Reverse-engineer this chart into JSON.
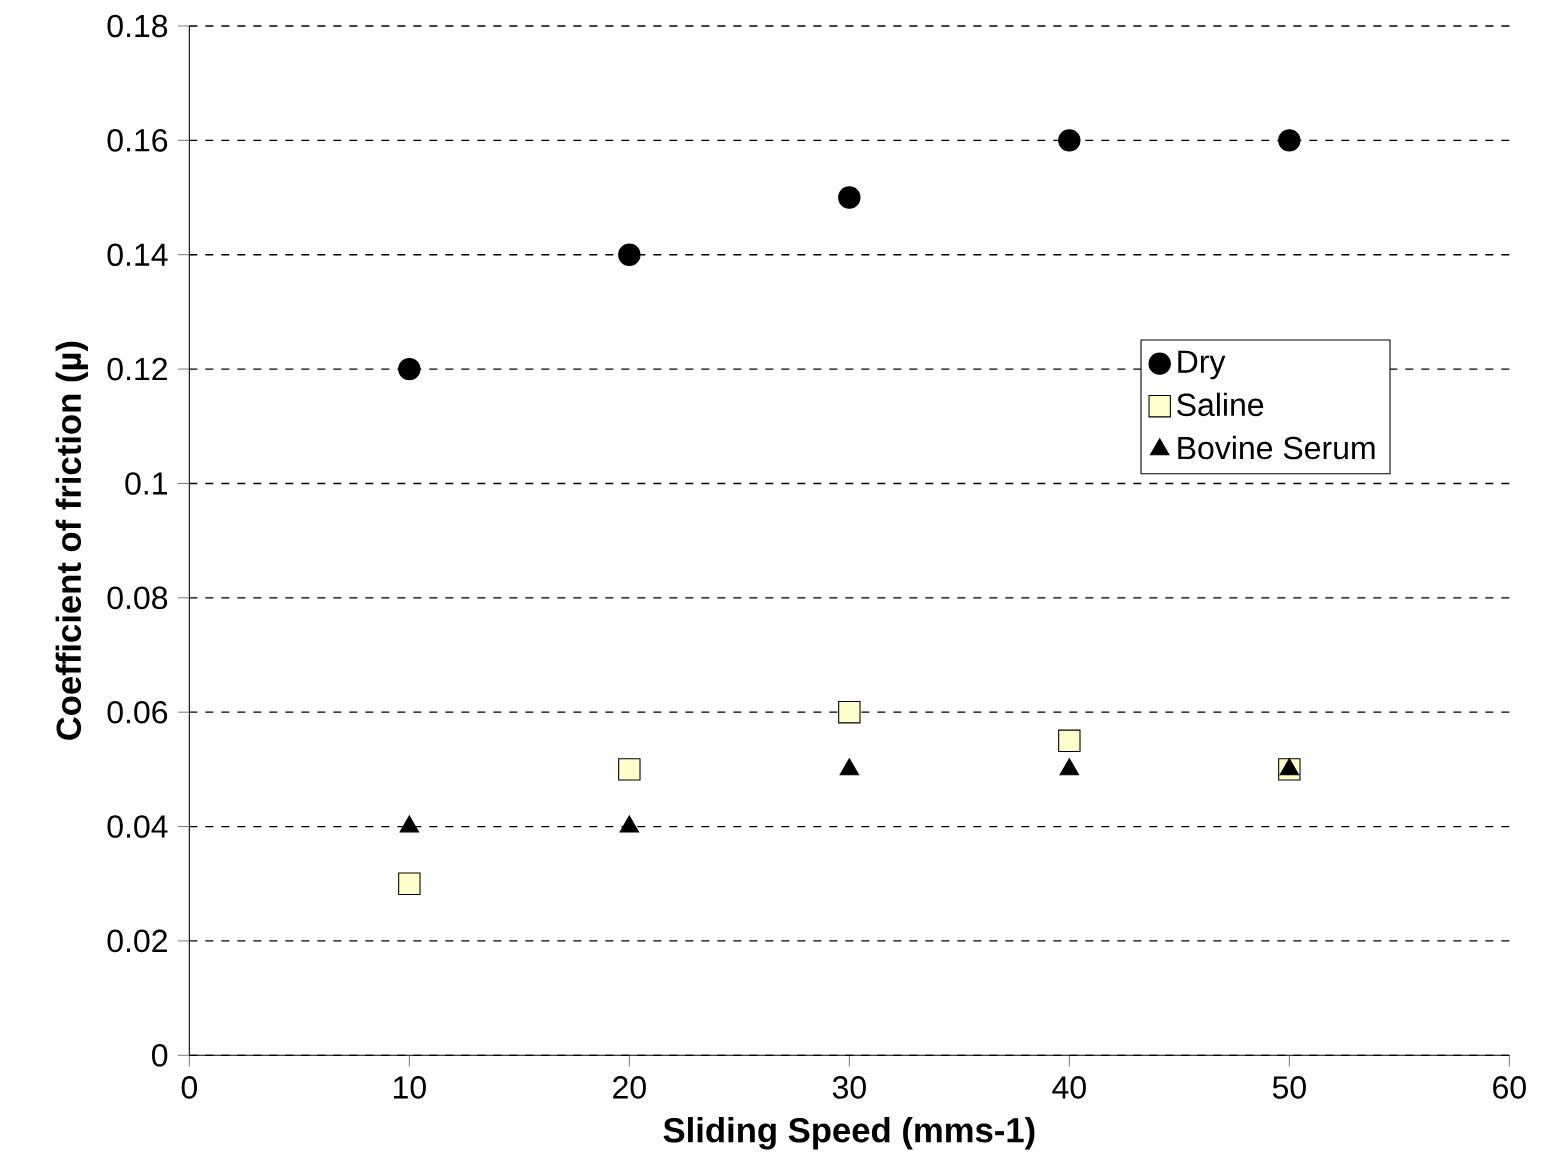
{
  "chart_data": {
    "type": "scatter",
    "xlabel": "Sliding Speed (mms-1)",
    "ylabel": "Coefficient of friction (µ)",
    "x": [
      10,
      20,
      30,
      40,
      50
    ],
    "series": [
      {
        "name": "Dry",
        "color": "#000000",
        "marker": "circle",
        "values": [
          0.12,
          0.14,
          0.15,
          0.16,
          0.16
        ]
      },
      {
        "name": "Saline",
        "color": "#ffffcc",
        "marker": "square",
        "values": [
          0.03,
          0.05,
          0.06,
          0.055,
          0.05
        ]
      },
      {
        "name": "Bovine Serum",
        "color": "#000000",
        "marker": "triangle",
        "values": [
          0.04,
          0.04,
          0.05,
          0.05,
          0.05
        ]
      }
    ],
    "xlim": [
      0,
      60
    ],
    "xticks": [
      0,
      10,
      20,
      30,
      40,
      50,
      60
    ],
    "ylim": [
      0,
      0.18
    ],
    "yticks": [
      0,
      0.02,
      0.04,
      0.06,
      0.08,
      0.1,
      0.12,
      0.14,
      0.16,
      0.18
    ],
    "grid": "y",
    "legend": "right"
  }
}
